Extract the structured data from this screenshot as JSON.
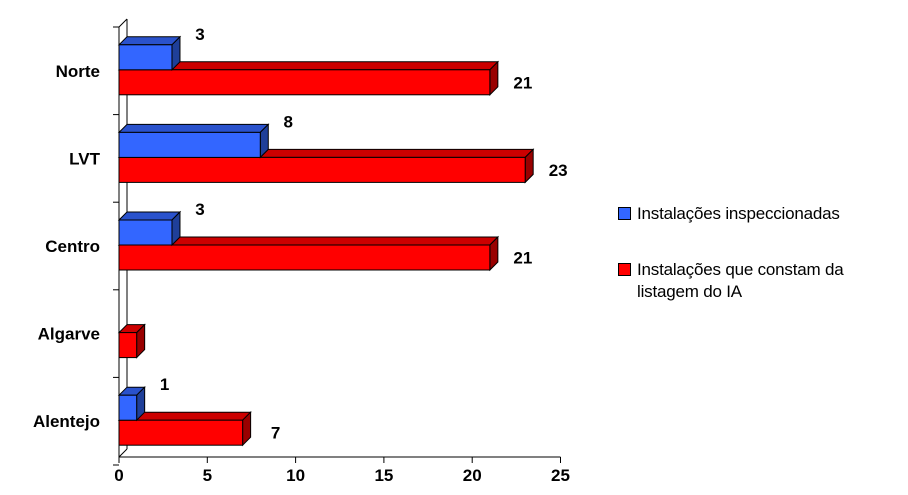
{
  "colors": {
    "series1": "#3366ff",
    "series1_side": "#1f3f99",
    "series1_top": "#2a52cc",
    "series2": "#ff0000",
    "series2_side": "#990000",
    "series2_top": "#cc0000"
  },
  "chart_data": {
    "type": "bar",
    "orientation": "horizontal",
    "three_d": true,
    "categories": [
      "Norte",
      "LVT",
      "Centro",
      "Algarve",
      "Alentejo"
    ],
    "series": [
      {
        "name": "Instalações inspeccionadas",
        "values": [
          3,
          8,
          3,
          null,
          1
        ]
      },
      {
        "name": "Instalações que constam da listagem do IA",
        "values": [
          21,
          23,
          21,
          1,
          7
        ]
      }
    ],
    "xlim": [
      0,
      25
    ],
    "xticks": [
      "0",
      "5",
      "10",
      "15",
      "20",
      "25"
    ],
    "data_labels": {
      "series1": [
        "3",
        "8",
        "3",
        "",
        "1"
      ],
      "series2": [
        "21",
        "23",
        "21",
        "",
        "7"
      ]
    },
    "grid": false,
    "legend_position": "right"
  }
}
